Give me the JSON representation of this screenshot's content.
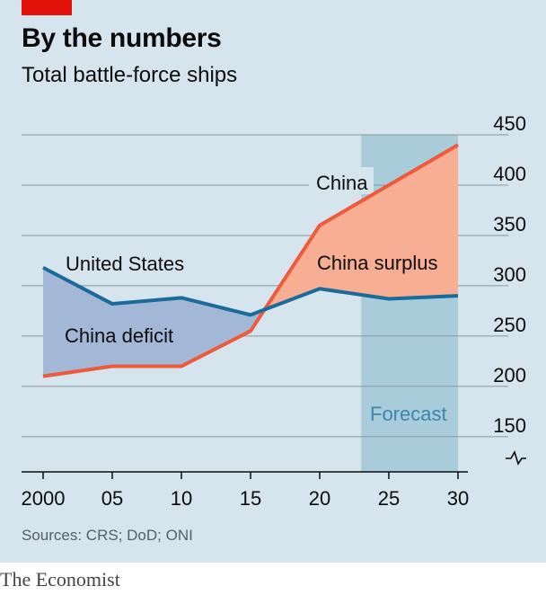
{
  "header": {
    "title": "By the numbers",
    "subtitle": "Total battle-force ships"
  },
  "chart_data": {
    "type": "line",
    "title": "By the numbers",
    "subtitle": "Total battle-force ships",
    "x_tick_labels": [
      "2000",
      "05",
      "10",
      "15",
      "20",
      "25",
      "30"
    ],
    "x_ticks": [
      2000,
      2005,
      2010,
      2015,
      2020,
      2025,
      2030
    ],
    "y_ticks": [
      150,
      200,
      250,
      300,
      350,
      400,
      450
    ],
    "ylim": [
      115,
      450
    ],
    "xlim": [
      2000,
      2030
    ],
    "y_axis_position": "right",
    "y_axis_break": true,
    "grid": true,
    "series": [
      {
        "name": "United States",
        "color": "#1a6b9a",
        "x": [
          2000,
          2005,
          2010,
          2015,
          2020,
          2025,
          2030
        ],
        "values": [
          318,
          282,
          288,
          271,
          297,
          287,
          290
        ]
      },
      {
        "name": "China",
        "color": "#ee5a3c",
        "x": [
          2000,
          2005,
          2010,
          2015,
          2020,
          2025,
          2030
        ],
        "values": [
          210,
          220,
          220,
          255,
          360,
          400,
          440
        ]
      }
    ],
    "annotations": {
      "deficit_label": "China deficit",
      "surplus_label": "China surplus",
      "forecast_label": "Forecast",
      "forecast_range": [
        2023,
        2030
      ]
    },
    "colors": {
      "deficit_fill": "#a3b7d6",
      "surplus_fill": "#f8ae92",
      "forecast_fill": "#a9ccdb",
      "forecast_text": "#3b86ad",
      "grid": "#8a969c",
      "background": "#d6e4ee"
    }
  },
  "footer": {
    "source": "Sources: CRS; DoD; ONI",
    "brand": "The Economist"
  }
}
